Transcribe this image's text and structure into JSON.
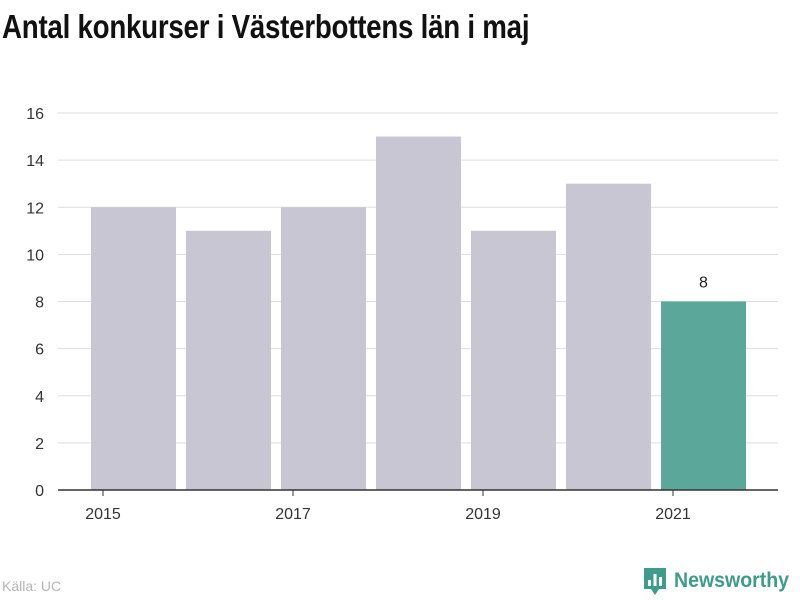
{
  "chart_data": {
    "type": "bar",
    "title": "Antal konkurser i Västerbottens län i maj",
    "categories": [
      "2015",
      "2016",
      "2017",
      "2018",
      "2019",
      "2020",
      "2021"
    ],
    "values": [
      12,
      11,
      12,
      15,
      11,
      13,
      8
    ],
    "x_tick_labels": [
      "2015",
      "2017",
      "2019",
      "2021"
    ],
    "y_ticks": [
      0,
      2,
      4,
      6,
      8,
      10,
      12,
      14,
      16
    ],
    "ylim": [
      0,
      16
    ],
    "grid": true,
    "highlight": {
      "category": "2021",
      "label": "8"
    },
    "colors": {
      "bar": "#c8c6d3",
      "highlight": "#5ba89b",
      "grid": "#dddddd",
      "axis": "#333333"
    }
  },
  "source": "Källa: UC",
  "brand": {
    "name": "Newsworthy",
    "icon": "newsworthy-logo-icon"
  }
}
